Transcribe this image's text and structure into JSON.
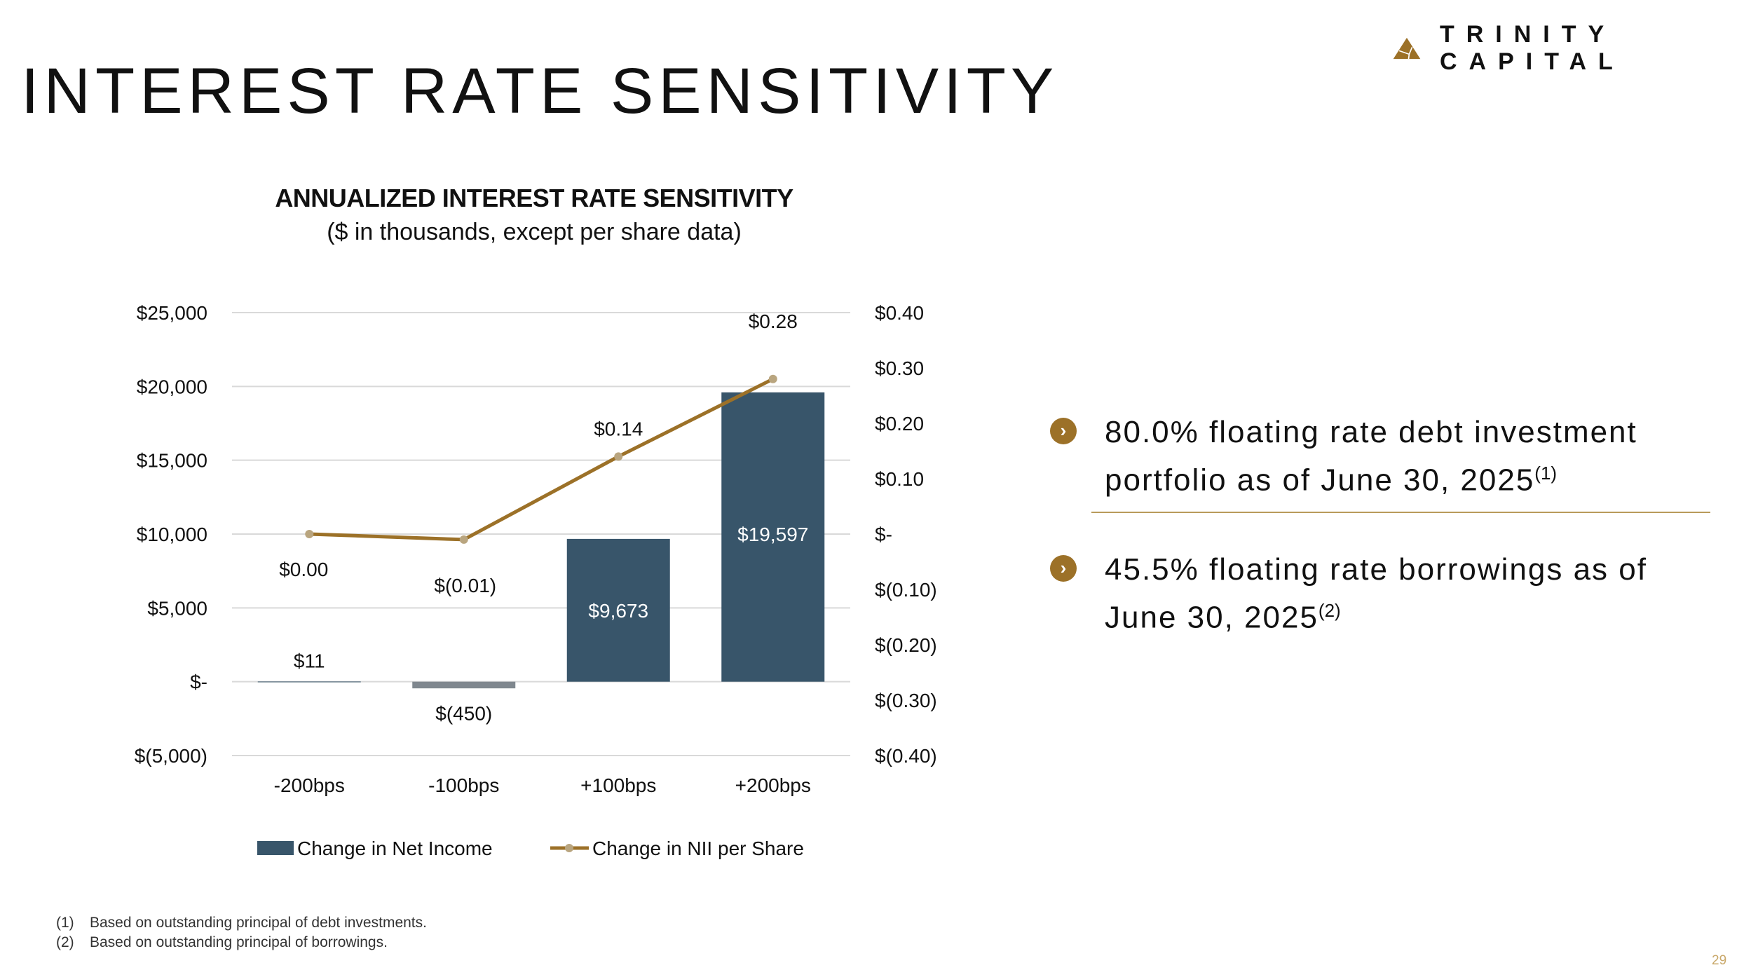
{
  "header": {
    "title": "INTEREST RATE SENSITIVITY",
    "logo_text": "TRINITY CAPITAL"
  },
  "chart_data": {
    "type": "bar",
    "title": "ANNUALIZED INTEREST RATE SENSITIVITY",
    "subtitle": "($ in thousands, except per share data)",
    "categories": [
      "-200bps",
      "-100bps",
      "+100bps",
      "+200bps"
    ],
    "series": [
      {
        "name": "Change in Net Income",
        "type": "bar",
        "axis": "left",
        "values": [
          11,
          -450,
          9673,
          19597
        ],
        "labels": [
          "$11",
          "$(450)",
          "$9,673",
          "$19,597"
        ],
        "color": "#38556a",
        "negative_color": "#7f878e"
      },
      {
        "name": "Change in NII per Share",
        "type": "line",
        "axis": "right",
        "values": [
          0.0,
          -0.01,
          0.14,
          0.28
        ],
        "labels": [
          "$0.00",
          "$(0.01)",
          "$0.14",
          "$0.28"
        ],
        "color": "#9c7128",
        "marker_color": "#b9a57f"
      }
    ],
    "left_axis": {
      "range": [
        -5000,
        25000
      ],
      "ticks": [
        25000,
        20000,
        15000,
        10000,
        5000,
        0,
        -5000
      ],
      "tick_labels": [
        "$25,000",
        "$20,000",
        "$15,000",
        "$10,000",
        "$5,000",
        "$-",
        "$(5,000)"
      ]
    },
    "right_axis": {
      "range": [
        -0.4,
        0.4
      ],
      "ticks": [
        0.4,
        0.3,
        0.2,
        0.1,
        0,
        -0.1,
        -0.2,
        -0.3,
        -0.4
      ],
      "tick_labels": [
        "$0.40",
        "$0.30",
        "$0.20",
        "$0.10",
        "$-",
        "$(0.10)",
        "$(0.20)",
        "$(0.30)",
        "$(0.40)"
      ]
    },
    "grid": true,
    "legend_placement": "bottom"
  },
  "bullets": [
    {
      "text": "80.0% floating rate debt investment portfolio as of June 30, 2025",
      "note": "(1)"
    },
    {
      "text": "45.5% floating rate borrowings as of June 30, 2025",
      "note": "(2)"
    }
  ],
  "footnotes": [
    {
      "num": "(1)",
      "text": "Based on outstanding principal of debt investments."
    },
    {
      "num": "(2)",
      "text": "Based on outstanding principal of borrowings."
    }
  ],
  "page_number": "29",
  "colors": {
    "accent": "#9c7128",
    "bar": "#38556a",
    "divider": "#b99b5b"
  }
}
